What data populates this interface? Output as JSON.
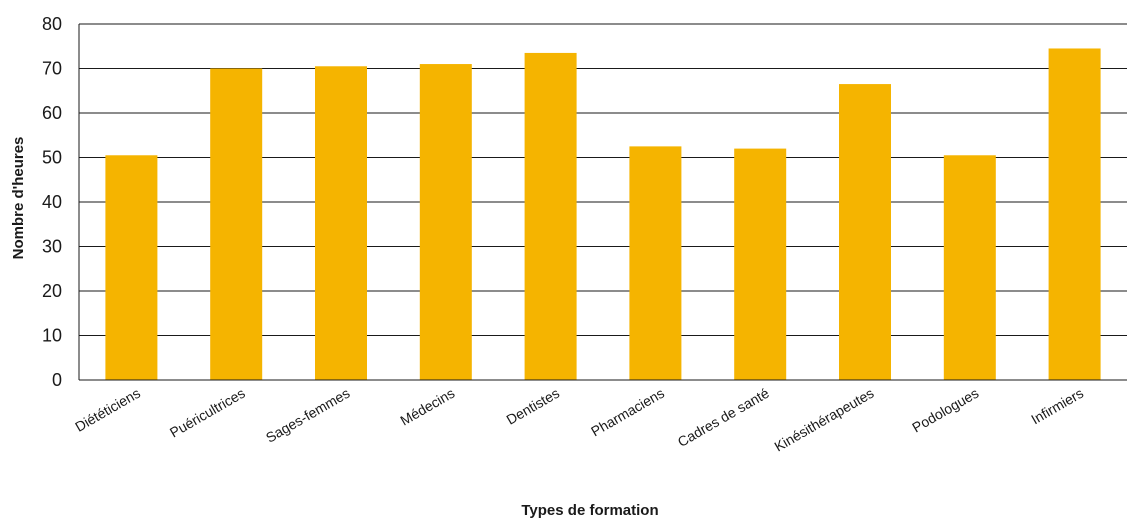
{
  "chart_data": {
    "type": "bar",
    "title": "",
    "xlabel": "Types de formation",
    "ylabel": "Nombre d'heures",
    "categories": [
      "Diététiciens",
      "Puéricultrices",
      "Sages-femmes",
      "Médecins",
      "Dentistes",
      "Pharmaciens",
      "Cadres de santé",
      "Kinésithérapeutes",
      "Podologues",
      "Infirmiers"
    ],
    "values": [
      50.5,
      70,
      70.5,
      71,
      73.5,
      52.5,
      52,
      66.5,
      50.5,
      74.5
    ],
    "ylim": [
      0,
      80
    ],
    "yticks": [
      0,
      10,
      20,
      30,
      40,
      50,
      60,
      70,
      80
    ],
    "grid": true,
    "legend": "none",
    "bar_color": "#F5B400"
  }
}
